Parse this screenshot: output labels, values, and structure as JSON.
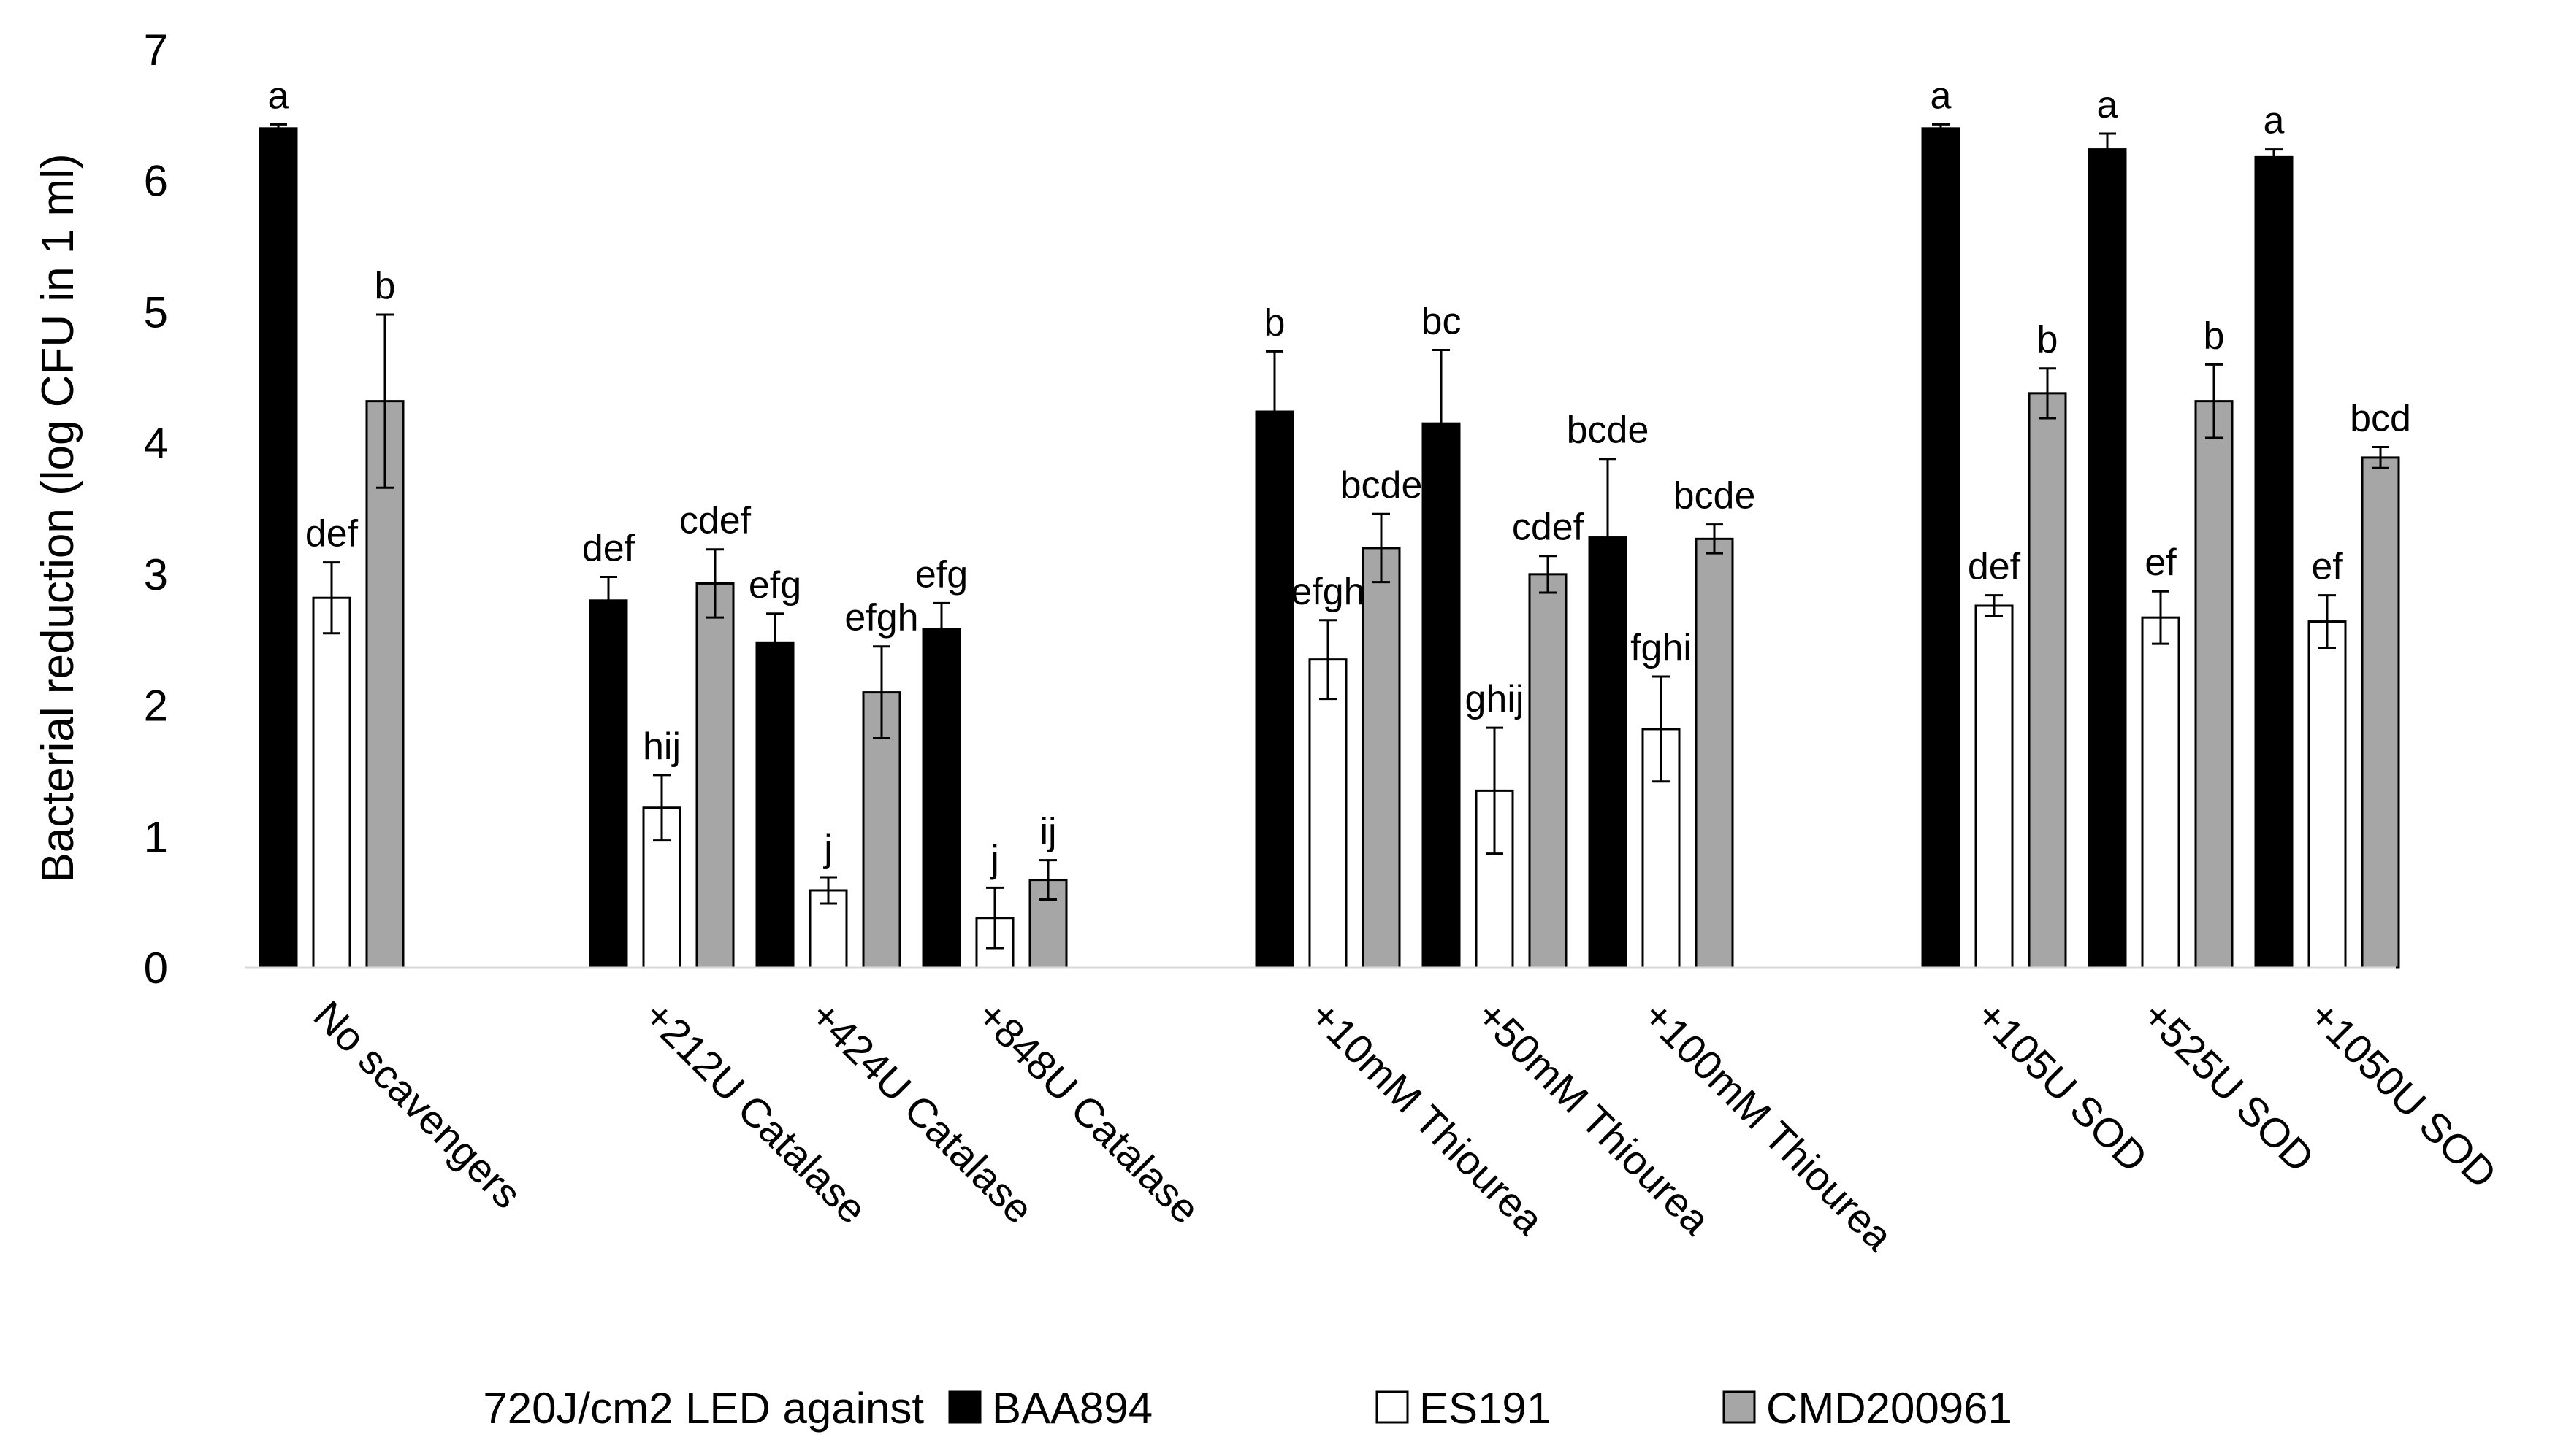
{
  "chart_data": {
    "type": "bar",
    "title": "",
    "xlabel": "",
    "ylabel": "Bacterial reduction (log CFU in 1 ml)",
    "ylim": [
      0,
      7
    ],
    "yticks": [
      "0",
      "1",
      "2",
      "3",
      "4",
      "5",
      "6",
      "7"
    ],
    "grid": false,
    "legend_position": "bottom",
    "legend_title": "720J/cm2 LED against",
    "group_sets": [
      [
        0
      ],
      [
        1,
        2,
        3
      ],
      [
        4,
        5,
        6
      ],
      [
        7,
        8,
        9
      ]
    ],
    "categories": [
      "No scavengers",
      "+212U Catalase",
      "+424U Catalase",
      "+848U Catalase",
      "+10mM Thiourea",
      "+50mM Thiourea",
      "+100mM Thiourea",
      "+105U SOD",
      "+525U SOD",
      "+1050U SOD"
    ],
    "series": [
      {
        "name": "BAA894",
        "color": "#000000",
        "values": [
          6.4,
          2.8,
          2.48,
          2.58,
          4.24,
          4.15,
          3.28,
          6.4,
          6.24,
          6.18
        ],
        "errors": [
          0.03,
          0.18,
          0.22,
          0.2,
          0.46,
          0.56,
          0.6,
          0.03,
          0.12,
          0.06
        ],
        "labels": [
          "a",
          "def",
          "efg",
          "efg",
          "b",
          "bc",
          "bcde",
          "a",
          "a",
          "a"
        ]
      },
      {
        "name": "ES191",
        "color": "#ffffff",
        "values": [
          2.82,
          1.22,
          0.59,
          0.38,
          2.35,
          1.35,
          1.82,
          2.76,
          2.67,
          2.64
        ],
        "errors": [
          0.27,
          0.25,
          0.1,
          0.23,
          0.3,
          0.48,
          0.4,
          0.08,
          0.2,
          0.2
        ],
        "labels": [
          "def",
          "hij",
          "j",
          "j",
          "efgh",
          "ghij",
          "fghi",
          "def",
          "ef",
          "ef"
        ]
      },
      {
        "name": "CMD200961",
        "color": "#a6a6a6",
        "values": [
          4.32,
          2.93,
          2.1,
          0.67,
          3.2,
          3.0,
          3.27,
          4.38,
          4.32,
          3.89
        ],
        "errors": [
          0.66,
          0.26,
          0.35,
          0.15,
          0.26,
          0.14,
          0.11,
          0.19,
          0.28,
          0.08
        ],
        "labels": [
          "b",
          "cdef",
          "efgh",
          "ij",
          "bcde",
          "cdef",
          "bcde",
          "b",
          "b",
          "bcd"
        ]
      }
    ]
  }
}
